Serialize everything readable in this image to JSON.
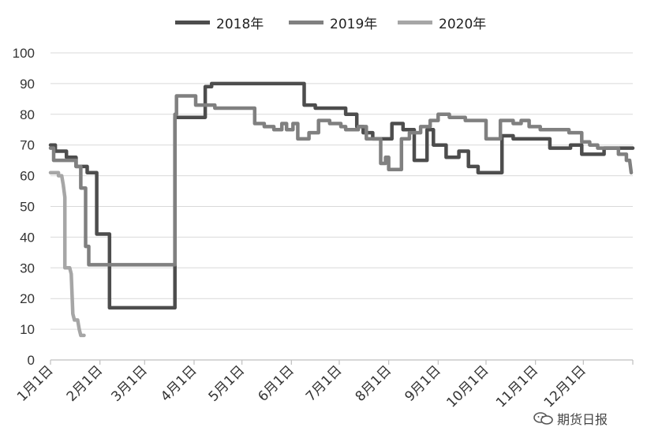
{
  "chart_data": {
    "type": "line",
    "title": "",
    "xlabel": "",
    "ylabel": "",
    "ylim": [
      0,
      100
    ],
    "yticks": [
      0,
      10,
      20,
      30,
      40,
      50,
      60,
      70,
      80,
      90,
      100
    ],
    "xlim": [
      0,
      365
    ],
    "x_tick_positions": [
      0,
      31,
      59,
      90,
      120,
      151,
      181,
      212,
      243,
      273,
      304,
      334,
      365
    ],
    "x_tick_labels": [
      "1月1日",
      "2月1日",
      "3月1日",
      "4月1日",
      "5月1日",
      "6月1日",
      "7月1日",
      "8月1日",
      "9月1日",
      "10月1日",
      "11月1日",
      "12月1日",
      ""
    ],
    "grid": "horizontal",
    "legend_position": "top",
    "series": [
      {
        "name": "2018年",
        "color": "#4d4d4d",
        "points": [
          [
            0,
            70
          ],
          [
            3,
            70
          ],
          [
            3,
            68
          ],
          [
            10,
            68
          ],
          [
            10,
            66
          ],
          [
            16,
            66
          ],
          [
            16,
            63
          ],
          [
            23,
            63
          ],
          [
            23,
            61
          ],
          [
            29,
            61
          ],
          [
            29,
            41
          ],
          [
            37,
            41
          ],
          [
            37,
            17
          ],
          [
            78,
            17
          ],
          [
            78,
            79
          ],
          [
            97,
            79
          ],
          [
            97,
            89
          ],
          [
            101,
            89
          ],
          [
            101,
            90
          ],
          [
            159,
            90
          ],
          [
            159,
            83
          ],
          [
            166,
            83
          ],
          [
            166,
            82
          ],
          [
            185,
            82
          ],
          [
            185,
            80
          ],
          [
            192,
            80
          ],
          [
            192,
            76
          ],
          [
            196,
            76
          ],
          [
            196,
            74
          ],
          [
            202,
            74
          ],
          [
            202,
            72
          ],
          [
            214,
            72
          ],
          [
            214,
            77
          ],
          [
            221,
            77
          ],
          [
            221,
            75
          ],
          [
            228,
            75
          ],
          [
            228,
            65
          ],
          [
            236,
            65
          ],
          [
            236,
            75
          ],
          [
            240,
            75
          ],
          [
            240,
            70
          ],
          [
            248,
            70
          ],
          [
            248,
            66
          ],
          [
            256,
            66
          ],
          [
            256,
            68
          ],
          [
            262,
            68
          ],
          [
            262,
            63
          ],
          [
            268,
            63
          ],
          [
            268,
            61
          ],
          [
            283,
            61
          ],
          [
            283,
            73
          ],
          [
            290,
            73
          ],
          [
            290,
            72
          ],
          [
            313,
            72
          ],
          [
            313,
            69
          ],
          [
            326,
            69
          ],
          [
            326,
            70
          ],
          [
            333,
            70
          ],
          [
            333,
            67
          ],
          [
            347,
            67
          ],
          [
            347,
            69
          ],
          [
            365,
            69
          ]
        ]
      },
      {
        "name": "2019年",
        "color": "#808080",
        "points": [
          [
            0,
            69
          ],
          [
            2,
            69
          ],
          [
            2,
            65
          ],
          [
            16,
            65
          ],
          [
            16,
            63
          ],
          [
            19,
            63
          ],
          [
            19,
            56
          ],
          [
            22,
            56
          ],
          [
            22,
            37
          ],
          [
            24,
            37
          ],
          [
            24,
            31
          ],
          [
            78,
            31
          ],
          [
            78,
            80
          ],
          [
            79,
            80
          ],
          [
            79,
            86
          ],
          [
            91,
            86
          ],
          [
            91,
            83
          ],
          [
            103,
            83
          ],
          [
            103,
            82
          ],
          [
            128,
            82
          ],
          [
            128,
            77
          ],
          [
            134,
            77
          ],
          [
            134,
            76
          ],
          [
            140,
            76
          ],
          [
            140,
            75
          ],
          [
            145,
            75
          ],
          [
            145,
            77
          ],
          [
            148,
            77
          ],
          [
            148,
            75
          ],
          [
            152,
            75
          ],
          [
            152,
            77
          ],
          [
            155,
            77
          ],
          [
            155,
            72
          ],
          [
            162,
            72
          ],
          [
            162,
            74
          ],
          [
            168,
            74
          ],
          [
            168,
            78
          ],
          [
            175,
            78
          ],
          [
            175,
            77
          ],
          [
            182,
            77
          ],
          [
            182,
            76
          ],
          [
            185,
            76
          ],
          [
            185,
            75
          ],
          [
            193,
            75
          ],
          [
            193,
            76
          ],
          [
            198,
            76
          ],
          [
            198,
            72
          ],
          [
            207,
            72
          ],
          [
            207,
            64
          ],
          [
            210,
            64
          ],
          [
            210,
            66
          ],
          [
            212,
            66
          ],
          [
            212,
            62
          ],
          [
            220,
            62
          ],
          [
            220,
            72
          ],
          [
            225,
            72
          ],
          [
            225,
            74
          ],
          [
            232,
            74
          ],
          [
            232,
            76
          ],
          [
            238,
            76
          ],
          [
            238,
            78
          ],
          [
            243,
            78
          ],
          [
            243,
            80
          ],
          [
            250,
            80
          ],
          [
            250,
            79
          ],
          [
            260,
            79
          ],
          [
            260,
            78
          ],
          [
            273,
            78
          ],
          [
            273,
            72
          ],
          [
            282,
            72
          ],
          [
            282,
            78
          ],
          [
            290,
            78
          ],
          [
            290,
            77
          ],
          [
            295,
            77
          ],
          [
            295,
            78
          ],
          [
            300,
            78
          ],
          [
            300,
            76
          ],
          [
            307,
            76
          ],
          [
            307,
            75
          ],
          [
            325,
            75
          ],
          [
            325,
            74
          ],
          [
            333,
            74
          ],
          [
            333,
            71
          ],
          [
            338,
            71
          ],
          [
            338,
            70
          ],
          [
            343,
            70
          ],
          [
            343,
            69
          ],
          [
            356,
            69
          ],
          [
            356,
            67
          ],
          [
            361,
            67
          ],
          [
            361,
            65
          ],
          [
            363,
            65
          ],
          [
            364,
            61
          ]
        ]
      },
      {
        "name": "2020年",
        "color": "#a6a6a6",
        "points": [
          [
            0,
            61
          ],
          [
            5,
            61
          ],
          [
            5,
            60
          ],
          [
            7,
            60
          ],
          [
            8,
            57
          ],
          [
            9,
            53
          ],
          [
            9,
            30
          ],
          [
            12,
            30
          ],
          [
            13,
            28
          ],
          [
            14,
            15
          ],
          [
            15,
            13
          ],
          [
            17,
            13
          ],
          [
            18,
            10
          ],
          [
            19,
            8
          ],
          [
            21,
            8
          ]
        ]
      }
    ]
  },
  "watermark": {
    "text": "期货日报",
    "icon": "wechat-icon"
  }
}
